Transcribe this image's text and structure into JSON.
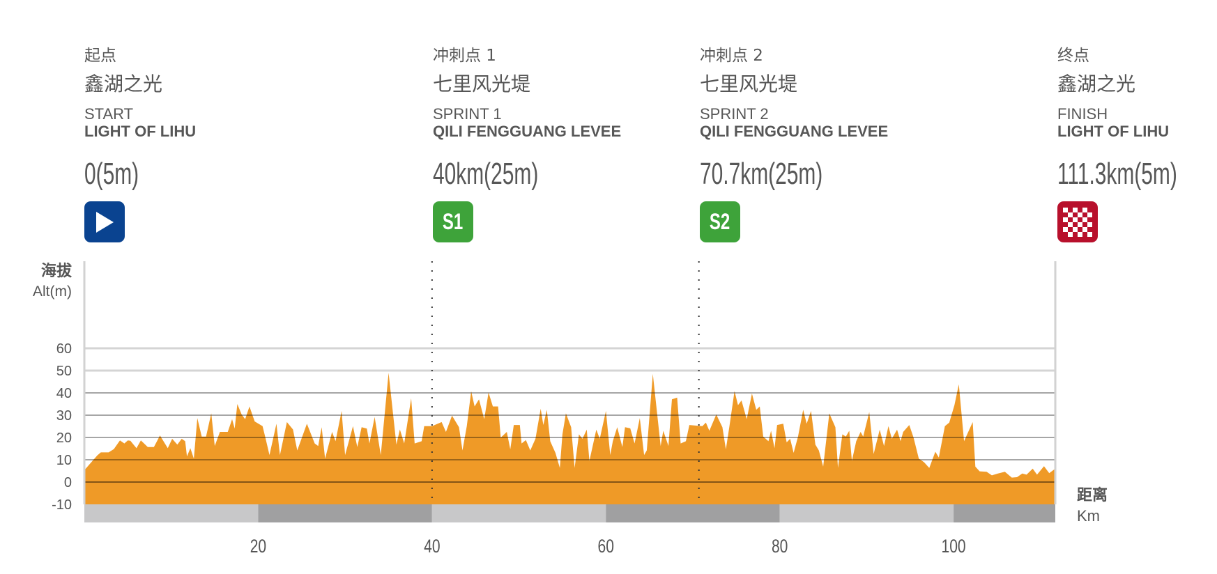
{
  "points": [
    {
      "cn_type": "起点",
      "cn_name": "鑫湖之光",
      "en_type": "START",
      "en_name": "LIGHT OF LIHU",
      "distance": "0(5m)",
      "icon": "start-flag-icon"
    },
    {
      "cn_type": "冲刺点 1",
      "cn_name": "七里风光堤",
      "en_type": "SPRINT 1",
      "en_name": "QILI FENGGUANG LEVEE",
      "distance": "40km(25m)",
      "icon": "sprint-icon",
      "badge": "S1"
    },
    {
      "cn_type": "冲刺点 2",
      "cn_name": "七里风光堤",
      "en_type": "SPRINT 2",
      "en_name": "QILI FENGGUANG LEVEE",
      "distance": "70.7km(25m)",
      "icon": "sprint-icon",
      "badge": "S2"
    },
    {
      "cn_type": "终点",
      "cn_name": "鑫湖之光",
      "en_type": "FINISH",
      "en_name": "LIGHT OF LIHU",
      "distance": "111.3km(5m)",
      "icon": "finish-checkered-flag-icon"
    }
  ],
  "colors": {
    "start": "#0a4390",
    "sprint": "#3ea33a",
    "finish": "#b8102c",
    "fill": "#ef9a27",
    "bar_light": "#c8c8c9",
    "bar_dark": "#a0a0a1"
  },
  "chart_data": {
    "type": "area",
    "title": "",
    "ylabel_cn": "海拔",
    "ylabel": "Alt(m)",
    "xlabel_cn": "距离",
    "xlabel": "Km",
    "xlim": [
      0,
      111.7
    ],
    "ylim": [
      -10,
      60
    ],
    "yticks": [
      60,
      50,
      40,
      30,
      20,
      10,
      0,
      -10
    ],
    "xticks": [
      20,
      40,
      60,
      80,
      100
    ],
    "markers": [
      {
        "label": "S1",
        "km": 40
      },
      {
        "label": "S2",
        "km": 70.7
      }
    ],
    "series": [
      {
        "name": "Elevation",
        "km": [
          0,
          1.5,
          1.9,
          2.8,
          3.4,
          4.1,
          4.6,
          5.0,
          5.3,
          6.0,
          6.5,
          7.3,
          8.0,
          8.7,
          9.6,
          10.1,
          10.7,
          11.2,
          11.6,
          11.8,
          12.2,
          12.6,
          13.0,
          13.5,
          14.0,
          14.6,
          15.0,
          15.6,
          16.5,
          17.0,
          17.3,
          17.6,
          18.1,
          18.5,
          19.0,
          19.6,
          20.5,
          20.8,
          21.3,
          22.1,
          22.5,
          23.3,
          24.0,
          24.5,
          25.6,
          26.5,
          26.9,
          27.3,
          27.7,
          28.5,
          28.9,
          29.6,
          30.0,
          30.9,
          31.4,
          31.9,
          32.5,
          32.8,
          33.4,
          34.1,
          35.0,
          35.9,
          36.3,
          36.8,
          37.6,
          38.0,
          38.8,
          39.1,
          40.0,
          41.1,
          41.6,
          42.3,
          43.1,
          43.5,
          44.0,
          44.5,
          44.9,
          45.4,
          46.0,
          46.5,
          47.0,
          47.6,
          47.9,
          48.6,
          49.0,
          49.4,
          50.1,
          50.3,
          50.8,
          51.3,
          51.9,
          52.5,
          52.8,
          53.2,
          53.6,
          54.2,
          54.7,
          55.0,
          55.4,
          56.0,
          56.4,
          56.9,
          57.3,
          57.8,
          58.1,
          58.9,
          59.3,
          60.0,
          60.5,
          60.8,
          61.3,
          61.9,
          62.2,
          62.8,
          63.3,
          63.9,
          64.4,
          64.7,
          65.4,
          66.3,
          66.6,
          67.2,
          67.6,
          68.2,
          68.6,
          69.2,
          69.6,
          71.1,
          71.5,
          71.9,
          72.7,
          73.4,
          73.8,
          74.2,
          74.8,
          75.2,
          75.6,
          76.2,
          76.8,
          77.3,
          77.7,
          78.1,
          78.7,
          79.0,
          79.4,
          79.7,
          80.4,
          80.8,
          81.2,
          81.6,
          82.1,
          82.7,
          83.1,
          83.6,
          84.1,
          84.5,
          85.0,
          85.7,
          86.4,
          86.7,
          87.2,
          87.6,
          88.0,
          88.3,
          88.8,
          89.3,
          89.6,
          90.3,
          90.8,
          91.5,
          92.0,
          92.5,
          92.9,
          93.5,
          93.9,
          94.2,
          94.9,
          95.4,
          96.0,
          96.6,
          97.2,
          97.9,
          98.3,
          99.0,
          99.5,
          100.1,
          100.6,
          101.2,
          102.2,
          102.5,
          103.0,
          103.8,
          104.4,
          105.1,
          105.9,
          106.7,
          107.3,
          107.9,
          108.4,
          109.1,
          109.6,
          110.4,
          111.0,
          111.7
        ],
        "alt": [
          5.3,
          12,
          13.3,
          13.3,
          14.8,
          18.7,
          17.3,
          18.7,
          18.5,
          15.2,
          18.7,
          15.7,
          15.7,
          20.9,
          15.2,
          19.4,
          16.8,
          19.4,
          18.3,
          11.5,
          15.2,
          10.5,
          28.7,
          20.4,
          20.4,
          30.8,
          16.2,
          22.5,
          22.5,
          28.2,
          24,
          35,
          30.3,
          28.2,
          33.9,
          27.2,
          25.1,
          20.4,
          12.1,
          26.2,
          12.1,
          26.9,
          23.6,
          14.2,
          26.2,
          17.3,
          16.2,
          24.6,
          10.5,
          22.5,
          18.3,
          31.9,
          12.1,
          25.1,
          15.7,
          24.6,
          24,
          17.3,
          29.2,
          12.1,
          49,
          16.8,
          23.6,
          17.3,
          37.6,
          17.3,
          18.3,
          25.1,
          25.1,
          26.9,
          22.5,
          29.8,
          24.6,
          14.2,
          25.1,
          40.7,
          33.9,
          37.1,
          28.2,
          40.2,
          33.9,
          33.9,
          19.9,
          22.5,
          14.7,
          25.6,
          25.6,
          17.3,
          18.8,
          14.2,
          19.4,
          32.9,
          25.6,
          32.4,
          18.3,
          13.1,
          6.3,
          21.4,
          30.8,
          24.6,
          6.3,
          21.4,
          19.4,
          23.5,
          9.5,
          23.5,
          19.4,
          31.9,
          12.1,
          18.3,
          24.6,
          15.7,
          24.6,
          24.1,
          17.3,
          28.7,
          12.1,
          14.2,
          48.5,
          16.2,
          23,
          16.2,
          37.1,
          37.9,
          17.3,
          18.3,
          25.6,
          25.1,
          26.7,
          23,
          30.3,
          24.6,
          14.7,
          24.6,
          40.8,
          34.5,
          36.6,
          28.2,
          39.7,
          32.4,
          33.9,
          20.4,
          18.3,
          23,
          15.2,
          25.6,
          26.2,
          17.8,
          19.4,
          13.1,
          20.4,
          32.4,
          26.2,
          31.9,
          16.8,
          14.2,
          6.9,
          30.8,
          24.6,
          6.3,
          21.4,
          20.4,
          23,
          9.5,
          18.3,
          22.5,
          20.4,
          31.4,
          12.6,
          23.5,
          16.2,
          25.1,
          19.4,
          23.5,
          18.3,
          22.5,
          25.6,
          19.9,
          10.5,
          8.9,
          6.3,
          13.6,
          11,
          25.1,
          26.7,
          34.5,
          43.8,
          18.3,
          26.9,
          6.9,
          4.8,
          4.6,
          3.0,
          3.8,
          4.6,
          2.0,
          2.2,
          3.8,
          3.3,
          6.0,
          3.3,
          7.1,
          4.0,
          6.0
        ]
      }
    ]
  }
}
